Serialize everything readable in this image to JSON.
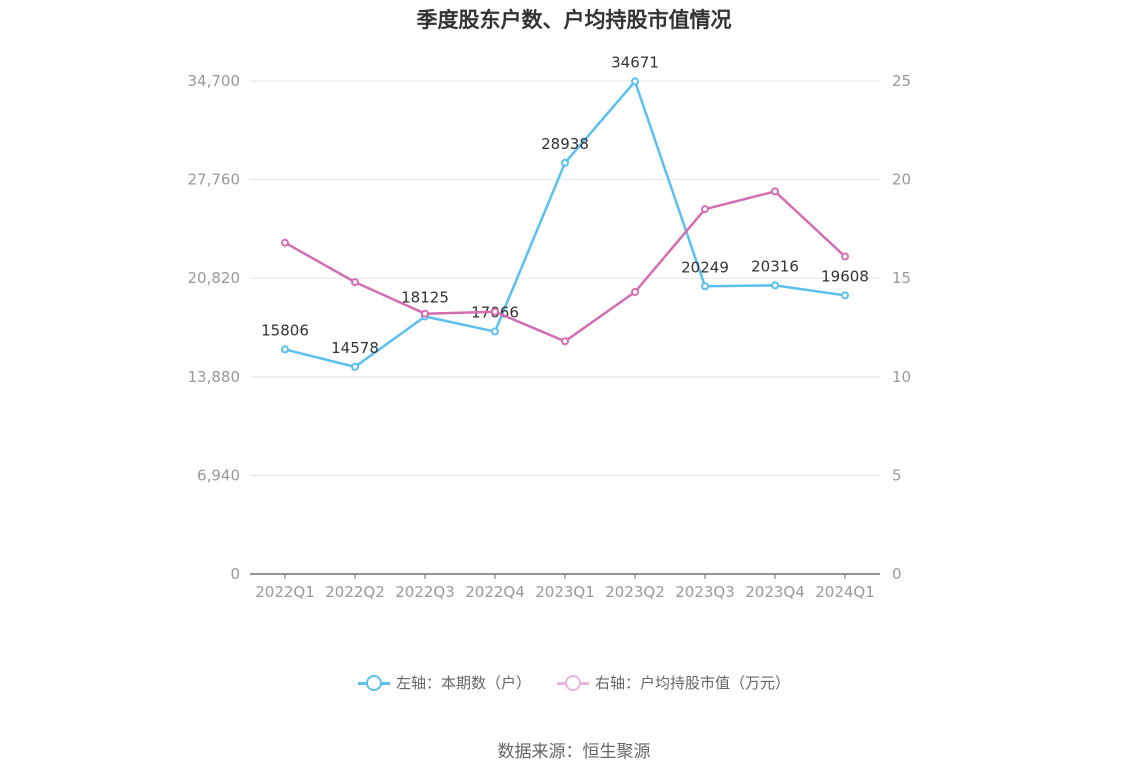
{
  "chart_data": {
    "type": "line",
    "title": "季度股东户数、户均持股市值情况",
    "categories": [
      "2022Q1",
      "2022Q2",
      "2022Q3",
      "2022Q4",
      "2023Q1",
      "2023Q2",
      "2023Q3",
      "2023Q4",
      "2024Q1"
    ],
    "y_left": {
      "ticks": [
        "0",
        "6,940",
        "13,880",
        "20,820",
        "27,760",
        "34,700"
      ],
      "min": 0,
      "max": 34700
    },
    "y_right": {
      "ticks": [
        "0",
        "5",
        "10",
        "15",
        "20",
        "25"
      ],
      "min": 0,
      "max": 25
    },
    "series": [
      {
        "name": "左轴：本期数（户）",
        "axis": "left",
        "color": "#5bc0f0",
        "values": [
          15806,
          14578,
          18125,
          17066,
          28938,
          34671,
          20249,
          20316,
          19608
        ],
        "labels": [
          "15806",
          "14578",
          "18125",
          "17066",
          "28938",
          "34671",
          "20249",
          "20316",
          "19608"
        ]
      },
      {
        "name": "右轴：户均持股市值（万元）",
        "axis": "right",
        "color": "#d46eb3",
        "values": [
          16.8,
          14.8,
          13.2,
          13.3,
          11.8,
          14.3,
          18.5,
          19.4,
          16.1
        ]
      }
    ],
    "grid": true,
    "legend_position": "bottom"
  },
  "source": "数据来源：恒生聚源"
}
